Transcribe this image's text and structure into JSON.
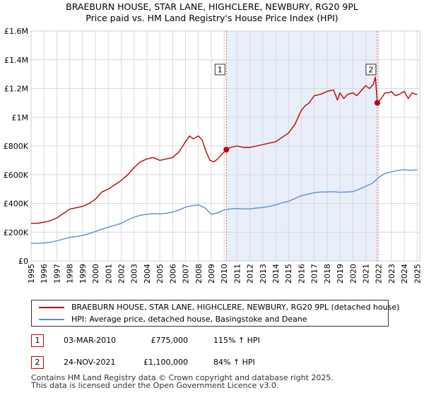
{
  "title": {
    "line1": "BRAEBURN HOUSE, STAR LANE, HIGHCLERE, NEWBURY, RG20 9PL",
    "line2": "Price paid vs. HM Land Registry's House Price Index (HPI)"
  },
  "colors": {
    "property_line": "#c00000",
    "hpi_line": "#5b8fd0",
    "shade": "#e8eefa",
    "grid": "#d8d8d8",
    "vline": "#e06060"
  },
  "chart_data": {
    "type": "line",
    "title": "BRAEBURN HOUSE, STAR LANE, HIGHCLERE, NEWBURY, RG20 9PL",
    "subtitle": "Price paid vs. HM Land Registry's House Price Index (HPI)",
    "xlabel": "",
    "ylabel": "",
    "xlim": [
      1995,
      2025.2
    ],
    "ylim": [
      0,
      1600000
    ],
    "grid": true,
    "y_ticks": [
      {
        "value": 0,
        "label": "£0"
      },
      {
        "value": 200000,
        "label": "£200K"
      },
      {
        "value": 400000,
        "label": "£400K"
      },
      {
        "value": 600000,
        "label": "£600K"
      },
      {
        "value": 800000,
        "label": "£800K"
      },
      {
        "value": 1000000,
        "label": "£1M"
      },
      {
        "value": 1200000,
        "label": "£1.2M"
      },
      {
        "value": 1400000,
        "label": "£1.4M"
      },
      {
        "value": 1600000,
        "label": "£1.6M"
      }
    ],
    "x_ticks": [
      "1995",
      "1996",
      "1997",
      "1998",
      "1999",
      "2000",
      "2001",
      "2002",
      "2003",
      "2004",
      "2005",
      "2006",
      "2007",
      "2008",
      "2009",
      "2010",
      "2011",
      "2012",
      "2013",
      "2014",
      "2015",
      "2016",
      "2017",
      "2018",
      "2019",
      "2020",
      "2021",
      "2022",
      "2023",
      "2024",
      "2025"
    ],
    "shaded_region": [
      2010.17,
      2021.9
    ],
    "series": [
      {
        "name": "BRAEBURN HOUSE, STAR LANE, HIGHCLERE, NEWBURY, RG20 9PL (detached house)",
        "color": "#c00000",
        "x": [
          1995.0,
          1995.5,
          1996.0,
          1996.5,
          1997.0,
          1997.5,
          1998.0,
          1998.5,
          1999.0,
          1999.5,
          2000.0,
          2000.5,
          2001.0,
          2001.5,
          2002.0,
          2002.5,
          2003.0,
          2003.5,
          2004.0,
          2004.5,
          2005.0,
          2005.5,
          2006.0,
          2006.5,
          2007.0,
          2007.3,
          2007.6,
          2008.0,
          2008.3,
          2008.6,
          2008.9,
          2009.2,
          2009.5,
          2009.8,
          2010.17,
          2010.5,
          2011.0,
          2011.5,
          2012.0,
          2012.5,
          2013.0,
          2013.5,
          2014.0,
          2014.5,
          2015.0,
          2015.5,
          2016.0,
          2016.3,
          2016.6,
          2017.0,
          2017.5,
          2018.0,
          2018.5,
          2018.8,
          2019.0,
          2019.3,
          2019.6,
          2020.0,
          2020.3,
          2020.6,
          2021.0,
          2021.3,
          2021.6,
          2021.75,
          2021.9,
          2022.2,
          2022.5,
          2022.8,
          2023.0,
          2023.3,
          2023.6,
          2024.0,
          2024.3,
          2024.6,
          2024.9,
          2025.0
        ],
        "y": [
          262000,
          262000,
          270000,
          280000,
          300000,
          330000,
          360000,
          370000,
          380000,
          400000,
          430000,
          480000,
          500000,
          530000,
          560000,
          600000,
          650000,
          690000,
          710000,
          720000,
          700000,
          710000,
          720000,
          760000,
          830000,
          870000,
          850000,
          870000,
          840000,
          760000,
          700000,
          690000,
          710000,
          740000,
          775000,
          790000,
          800000,
          790000,
          790000,
          800000,
          810000,
          820000,
          830000,
          860000,
          890000,
          950000,
          1050000,
          1080000,
          1100000,
          1150000,
          1160000,
          1180000,
          1190000,
          1120000,
          1170000,
          1130000,
          1160000,
          1170000,
          1150000,
          1180000,
          1220000,
          1200000,
          1230000,
          1280000,
          1100000,
          1130000,
          1170000,
          1170000,
          1180000,
          1150000,
          1160000,
          1180000,
          1130000,
          1170000,
          1160000,
          1160000
        ]
      },
      {
        "name": "HPI: Average price, detached house, Basingstoke and Deane",
        "color": "#5b8fd0",
        "x": [
          1995.0,
          1995.5,
          1996.0,
          1996.5,
          1997.0,
          1997.5,
          1998.0,
          1998.5,
          1999.0,
          1999.5,
          2000.0,
          2000.5,
          2001.0,
          2001.5,
          2002.0,
          2002.5,
          2003.0,
          2003.5,
          2004.0,
          2004.5,
          2005.0,
          2005.5,
          2006.0,
          2006.5,
          2007.0,
          2007.5,
          2008.0,
          2008.5,
          2009.0,
          2009.5,
          2010.0,
          2010.5,
          2011.0,
          2011.5,
          2012.0,
          2012.5,
          2013.0,
          2013.5,
          2014.0,
          2014.5,
          2015.0,
          2015.5,
          2016.0,
          2016.5,
          2017.0,
          2017.5,
          2018.0,
          2018.5,
          2019.0,
          2019.5,
          2020.0,
          2020.5,
          2021.0,
          2021.5,
          2022.0,
          2022.5,
          2023.0,
          2023.5,
          2024.0,
          2024.5,
          2025.0
        ],
        "y": [
          122000,
          122000,
          126000,
          130000,
          140000,
          152000,
          165000,
          170000,
          178000,
          190000,
          205000,
          222000,
          235000,
          248000,
          262000,
          285000,
          305000,
          318000,
          325000,
          330000,
          328000,
          332000,
          340000,
          355000,
          375000,
          385000,
          390000,
          370000,
          325000,
          335000,
          355000,
          362000,
          365000,
          362000,
          362000,
          368000,
          372000,
          380000,
          390000,
          405000,
          415000,
          435000,
          455000,
          465000,
          475000,
          480000,
          480000,
          482000,
          478000,
          480000,
          482000,
          500000,
          520000,
          540000,
          580000,
          610000,
          620000,
          630000,
          635000,
          630000,
          635000
        ]
      }
    ],
    "markers": [
      {
        "label": "1",
        "x": 2010.17,
        "y": 775000
      },
      {
        "label": "2",
        "x": 2021.9,
        "y": 1100000
      }
    ]
  },
  "legend": {
    "items": [
      {
        "label": "BRAEBURN HOUSE, STAR LANE, HIGHCLERE, NEWBURY, RG20 9PL (detached house)",
        "color": "#c00000"
      },
      {
        "label": "HPI: Average price, detached house, Basingstoke and Deane",
        "color": "#5b8fd0"
      }
    ]
  },
  "transactions": [
    {
      "label": "1",
      "date": "03-MAR-2010",
      "price": "£775,000",
      "hpi": "115% ↑ HPI"
    },
    {
      "label": "2",
      "date": "24-NOV-2021",
      "price": "£1,100,000",
      "hpi": "84% ↑ HPI"
    }
  ],
  "footer": {
    "line1": "Contains HM Land Registry data © Crown copyright and database right 2025.",
    "line2": "This data is licensed under the Open Government Licence v3.0."
  }
}
